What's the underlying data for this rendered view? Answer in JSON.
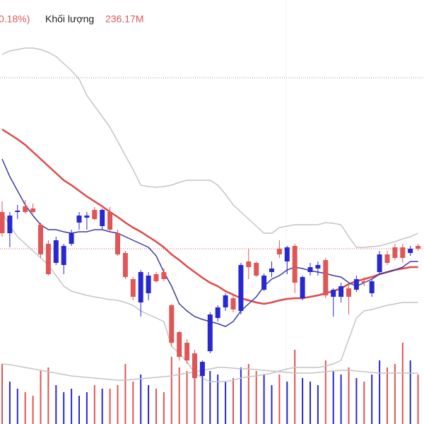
{
  "header": {
    "change": "0.18%)",
    "volume_label": "Khối lượng",
    "volume_value": "236.17M"
  },
  "chart_data": {
    "type": "candlestick",
    "ylim": [
      0,
      600
    ],
    "volume_ylim": [
      0,
      600
    ],
    "up_color": "#2828d0",
    "down_color": "#e05555",
    "open": [
      300,
      270,
      300,
      308,
      305,
      282,
      255,
      228,
      225,
      255,
      285,
      292,
      303,
      280,
      300,
      270,
      242,
      205,
      172,
      185,
      212,
      215,
      168,
      130,
      115,
      100,
      68,
      103,
      150,
      165,
      178,
      160,
      230,
      228,
      190,
      215,
      248,
      230,
      252,
      178,
      215,
      220,
      232,
      180,
      180,
      192,
      190,
      202,
      185,
      215,
      240,
      250,
      250,
      242,
      252
    ],
    "high": [
      315,
      300,
      310,
      317,
      312,
      285,
      260,
      265,
      255,
      275,
      300,
      300,
      307,
      305,
      307,
      275,
      245,
      208,
      218,
      215,
      215,
      220,
      170,
      132,
      120,
      105,
      90,
      158,
      168,
      185,
      182,
      228,
      248,
      230,
      213,
      230,
      260,
      252,
      255,
      210,
      228,
      230,
      235,
      192,
      200,
      200,
      210,
      208,
      205,
      245,
      245,
      255,
      255,
      252,
      255
    ],
    "low": [
      265,
      250,
      290,
      298,
      298,
      235,
      210,
      225,
      212,
      252,
      275,
      275,
      288,
      275,
      272,
      238,
      205,
      175,
      152,
      175,
      200,
      202,
      110,
      90,
      85,
      60,
      60,
      100,
      145,
      160,
      158,
      155,
      205,
      208,
      188,
      208,
      235,
      212,
      185,
      175,
      210,
      210,
      178,
      152,
      172,
      155,
      187,
      195,
      180,
      212,
      225,
      232,
      228,
      238,
      245
    ],
    "close": [
      270,
      295,
      302,
      300,
      300,
      240,
      212,
      260,
      252,
      270,
      295,
      295,
      290,
      303,
      275,
      240,
      208,
      180,
      215,
      210,
      202,
      205,
      115,
      95,
      90,
      65,
      88,
      155,
      165,
      182,
      162,
      225,
      222,
      210,
      210,
      220,
      240,
      250,
      200,
      208,
      222,
      225,
      182,
      190,
      195,
      180,
      205,
      200,
      202,
      240,
      228,
      235,
      235,
      248,
      248
    ],
    "volume": [
      85,
      60,
      50,
      45,
      40,
      75,
      80,
      55,
      45,
      50,
      40,
      45,
      55,
      50,
      50,
      55,
      85,
      60,
      70,
      55,
      50,
      45,
      95,
      80,
      75,
      90,
      85,
      75,
      70,
      60,
      65,
      80,
      85,
      75,
      70,
      55,
      70,
      60,
      105,
      65,
      60,
      55,
      90,
      75,
      70,
      80,
      65,
      60,
      70,
      90,
      80,
      85,
      115,
      90,
      70
    ],
    "lines": [
      {
        "color": "#c4c4c4",
        "values": [
          523,
          528,
          530,
          532,
          532,
          530,
          526,
          520,
          510,
          500,
          488,
          465,
          450,
          435,
          420,
          400,
          380,
          360,
          338,
          336,
          335,
          336,
          338,
          342,
          345,
          345,
          345,
          345,
          338,
          325,
          310,
          300,
          290,
          280,
          270,
          270,
          278,
          280,
          282,
          282,
          282,
          282,
          285,
          284,
          282,
          265,
          250,
          250,
          251,
          252,
          255,
          258,
          262,
          265,
          270
        ]
      },
      {
        "color": "#c4c4c4",
        "values": [
          300,
          280,
          265,
          255,
          245,
          235,
          225,
          210,
          195,
          188,
          185,
          182,
          180,
          178,
          176,
          175,
          172,
          168,
          160,
          155,
          150,
          145,
          110,
          100,
          88,
          72,
          65,
          60,
          60,
          60,
          62,
          65,
          67,
          68,
          70,
          72,
          75,
          78,
          80,
          80,
          80,
          80,
          82,
          85,
          90,
          120,
          150,
          160,
          162,
          165,
          168,
          170,
          172,
          172,
          172
        ]
      },
      {
        "color": "#e04848",
        "width": 2.5,
        "values": [
          417,
          410,
          403,
          395,
          385,
          375,
          365,
          355,
          345,
          338,
          330,
          322,
          315,
          308,
          300,
          293,
          285,
          278,
          272,
          265,
          258,
          250,
          240,
          232,
          223,
          215,
          207,
          200,
          195,
          188,
          183,
          178,
          175,
          172,
          170,
          172,
          175,
          177,
          178,
          178,
          180,
          182,
          185,
          188,
          192,
          198,
          202,
          205,
          208,
          212,
          215,
          218,
          220,
          222,
          222
        ]
      },
      {
        "color": "#3a3aa8",
        "width": 1.5,
        "values": [
          375,
          350,
          330,
          310,
          295,
          282,
          275,
          275,
          272,
          270,
          272,
          272,
          275,
          275,
          272,
          270,
          265,
          260,
          255,
          250,
          238,
          215,
          195,
          170,
          160,
          152,
          148,
          145,
          142,
          138,
          145,
          160,
          170,
          180,
          195,
          205,
          210,
          218,
          222,
          220,
          217,
          215,
          213,
          210,
          208,
          200,
          195,
          200,
          205,
          212,
          215,
          218,
          222,
          230,
          230
        ]
      }
    ],
    "volume_lines": [
      {
        "color": "#c4c4c4",
        "values": [
          85,
          84,
          82,
          80,
          78,
          76,
          74,
          72,
          70,
          68,
          67,
          66,
          65,
          64,
          63,
          62,
          62,
          63,
          64,
          65,
          66,
          67,
          68,
          70,
          72,
          74,
          76,
          78,
          80,
          80,
          79,
          78,
          78,
          77,
          76,
          75,
          74,
          73,
          72,
          72,
          72,
          73,
          74,
          75,
          76,
          76,
          75,
          74,
          73,
          72,
          72,
          72,
          72,
          72,
          72
        ]
      }
    ],
    "ref_lines": [
      {
        "value": 248,
        "color": "#e05555"
      },
      {
        "value": 490,
        "color": "#999999"
      }
    ]
  }
}
